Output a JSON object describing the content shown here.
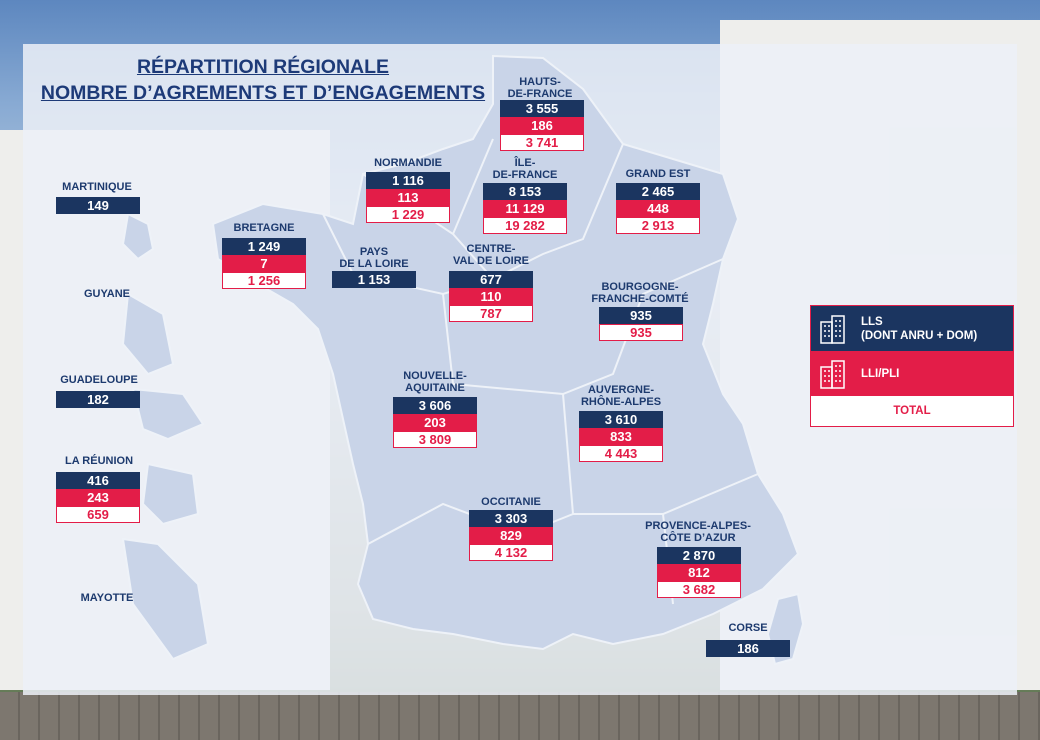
{
  "title": {
    "line1": "RÉPARTITION RÉGIONALE",
    "line2": "NOMBRE D’AGREMENTS ET D’ENGAGEMENTS"
  },
  "legend": {
    "lls": "LLS\n(DONT ANRU + DOM)",
    "lli": "LLI/PLI",
    "total": "TOTAL",
    "lls_icon": "building-icon",
    "lli_icon": "building-icon"
  },
  "colors": {
    "lls": "#1b3560",
    "lli": "#e31d48",
    "total_text": "#e31d48"
  },
  "regions": [
    {
      "id": "hauts-de-france",
      "name": "HAUTS-\nDE-FRANCE",
      "lls": "3 555",
      "lli": "186",
      "total": "3 741"
    },
    {
      "id": "normandie",
      "name": "NORMANDIE",
      "lls": "1 116",
      "lli": "113",
      "total": "1 229"
    },
    {
      "id": "ile-de-france",
      "name": "ÎLE-\nDE-FRANCE",
      "lls": "8 153",
      "lli": "11 129",
      "total": "19 282"
    },
    {
      "id": "grand-est",
      "name": "GRAND EST",
      "lls": "2 465",
      "lli": "448",
      "total": "2 913"
    },
    {
      "id": "bretagne",
      "name": "BRETAGNE",
      "lls": "1 249",
      "lli": "7",
      "total": "1 256"
    },
    {
      "id": "pays-de-la-loire",
      "name": "PAYS\nDE LA LOIRE",
      "lls": "1 153"
    },
    {
      "id": "centre-val-de-loire",
      "name": "CENTRE-\nVAL DE LOIRE",
      "lls": "677",
      "lli": "110",
      "total": "787"
    },
    {
      "id": "bourgogne-franche-comte",
      "name": "BOURGOGNE-\nFRANCHE-COMTÉ",
      "lls": "935",
      "total": "935"
    },
    {
      "id": "nouvelle-aquitaine",
      "name": "NOUVELLE-\nAQUITAINE",
      "lls": "3 606",
      "lli": "203",
      "total": "3 809"
    },
    {
      "id": "auvergne-rhone-alpes",
      "name": "AUVERGNE-\nRHÔNE-ALPES",
      "lls": "3 610",
      "lli": "833",
      "total": "4 443"
    },
    {
      "id": "occitanie",
      "name": "OCCITANIE",
      "lls": "3 303",
      "lli": "829",
      "total": "4 132"
    },
    {
      "id": "provence-alpes-cote-dazur",
      "name": "PROVENCE-ALPES-\nCÔTE D’AZUR",
      "lls": "2 870",
      "lli": "812",
      "total": "3 682"
    },
    {
      "id": "corse",
      "name": "CORSE",
      "lls": "186"
    },
    {
      "id": "martinique",
      "name": "MARTINIQUE",
      "lls": "149"
    },
    {
      "id": "guyane",
      "name": "GUYANE"
    },
    {
      "id": "guadeloupe",
      "name": "GUADELOUPE",
      "lls": "182"
    },
    {
      "id": "la-reunion",
      "name": "LA RÉUNION",
      "lls": "416",
      "lli": "243",
      "total": "659"
    },
    {
      "id": "mayotte",
      "name": "MAYOTTE"
    }
  ]
}
